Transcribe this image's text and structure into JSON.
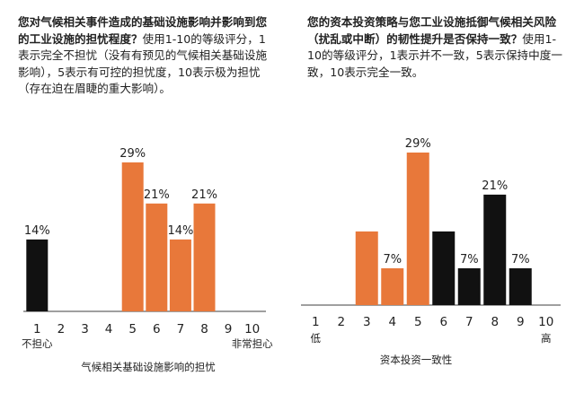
{
  "colors": {
    "orange": "#e8783a",
    "black": "#111111",
    "axis": "#666666",
    "text": "#222222"
  },
  "chart_data": [
    {
      "type": "bar",
      "title_bold": "您对气候相关事件造成的基础设施影响并影响到您的工业设施的担忧程度？",
      "title_rest": "使用1-10的等级评分，1表示完全不担忧（没有有预见的气候相关基础设施影响），5表示有可控的担忧度，10表示极为担忧（存在迫在眉睫的重大影响）。",
      "categories": [
        "1",
        "2",
        "3",
        "4",
        "5",
        "6",
        "7",
        "8",
        "9",
        "10"
      ],
      "values": [
        14,
        0,
        0,
        0,
        29,
        21,
        14,
        21,
        0,
        0
      ],
      "labels": [
        "14%",
        "",
        "",
        "",
        "29%",
        "21%",
        "14%",
        "21%",
        "",
        ""
      ],
      "colors": [
        "black",
        "",
        "",
        "",
        "orange",
        "orange",
        "orange",
        "orange",
        "",
        ""
      ],
      "low_label": "不担心",
      "high_label": "非常担心",
      "xlabel": "气候相关基础设施影响的担忧",
      "ylim": [
        0,
        29
      ]
    },
    {
      "type": "bar",
      "title_bold": "您的资本投资策略与您工业设施抵御气候相关风险（扰乱或中断）的韧性提升是否保持一致？",
      "title_rest": "使用1-10的等级评分，1表示并不一致，5表示保持中度一致，10表示完全一致。",
      "categories": [
        "1",
        "2",
        "3",
        "4",
        "5",
        "6",
        "7",
        "8",
        "9",
        "10"
      ],
      "values": [
        0,
        0,
        14,
        7,
        29,
        14,
        7,
        21,
        7,
        0
      ],
      "labels": [
        "",
        "",
        "",
        "7%",
        "29%",
        "",
        "7%",
        "21%",
        "7%",
        ""
      ],
      "colors": [
        "",
        "",
        "orange",
        "orange",
        "orange",
        "black",
        "black",
        "black",
        "black",
        ""
      ],
      "low_label": "低",
      "high_label": "高",
      "xlabel": "资本投资一致性",
      "ylim": [
        0,
        29
      ]
    }
  ]
}
